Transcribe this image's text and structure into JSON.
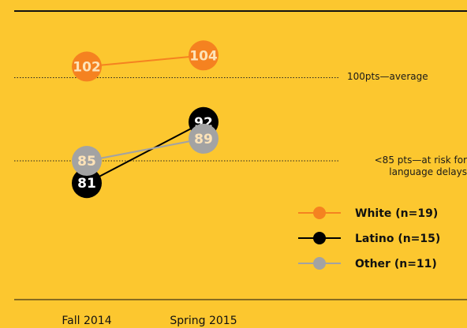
{
  "chart_data": {
    "type": "line",
    "categories": [
      "Fall 2014",
      "Spring 2015"
    ],
    "series": [
      {
        "name": "White (n=19)",
        "color": "#f58220",
        "values": [
          102,
          104
        ]
      },
      {
        "name": "Latino (n=15)",
        "color": "#000000",
        "values": [
          81,
          92
        ]
      },
      {
        "name": "Other (n=11)",
        "color": "#a3a3a3",
        "values": [
          85,
          89
        ]
      }
    ],
    "reference_lines": [
      {
        "value": 100,
        "label": "100pts—average"
      },
      {
        "value": 85,
        "label": "<85 pts—at risk for language delays"
      }
    ],
    "ylim": [
      60,
      112
    ]
  }
}
